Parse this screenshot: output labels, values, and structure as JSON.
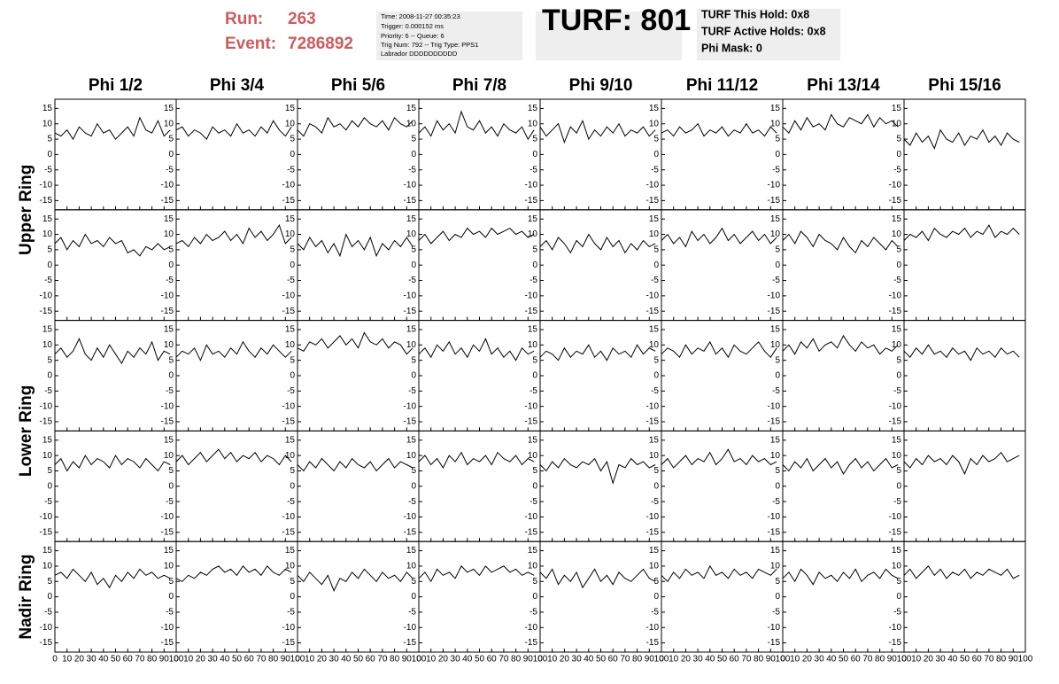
{
  "header": {
    "run_label": "Run:",
    "run": "263",
    "event_label": "Event:",
    "event": "7286892",
    "info": [
      "Time: 2008-11-27 00:35:23",
      "Trigger: 0.000152 ms",
      "Priority: 6 -- Queue: 6",
      "Trig Num: 792 -- Trig Type: PPS1",
      "Labrador DDDDDDDDDD"
    ],
    "turf": "TURF: 801",
    "turf_info": [
      "TURF This Hold: 0x8",
      "TURF Active Holds: 0x8",
      "Phi Mask: 0"
    ]
  },
  "chart_data": {
    "type": "line",
    "color": "#000000",
    "columns": [
      "Phi 1/2",
      "Phi 3/4",
      "Phi 5/6",
      "Phi 7/8",
      "Phi 9/10",
      "Phi 11/12",
      "Phi 13/14",
      "Phi 15/16"
    ],
    "rows": [
      "Upper Ring",
      "Lower Ring",
      "Nadir Ring"
    ],
    "xlim": [
      0,
      100
    ],
    "xticks": [
      0,
      10,
      20,
      30,
      40,
      50,
      60,
      70,
      80,
      90,
      100
    ],
    "ylim": [
      -18,
      18
    ],
    "yticks": [
      -15,
      -10,
      -5,
      0,
      5,
      10,
      15
    ],
    "x": [
      0,
      5,
      10,
      15,
      20,
      25,
      30,
      35,
      40,
      45,
      50,
      55,
      60,
      65,
      70,
      75,
      80,
      85,
      90,
      95
    ],
    "panels": [
      [
        [
          7,
          6,
          8,
          5,
          9,
          7,
          6,
          10,
          7,
          8,
          5,
          7,
          9,
          6,
          12,
          8,
          7,
          11,
          6,
          8
        ],
        [
          8,
          9,
          6,
          8,
          7,
          5,
          9,
          7,
          8,
          6,
          10,
          7,
          8,
          6,
          9,
          7,
          11,
          8,
          6,
          9
        ],
        [
          8,
          6,
          10,
          9,
          7,
          12,
          9,
          10,
          8,
          11,
          9,
          12,
          10,
          9,
          11,
          8,
          12,
          10,
          9,
          11
        ],
        [
          7,
          9,
          6,
          11,
          8,
          10,
          7,
          14,
          9,
          8,
          11,
          7,
          9,
          6,
          10,
          8,
          7,
          9,
          5,
          8
        ],
        [
          9,
          6,
          8,
          10,
          4,
          9,
          7,
          11,
          5,
          8,
          6,
          9,
          7,
          10,
          6,
          8,
          7,
          9,
          6,
          8
        ],
        [
          7,
          8,
          6,
          9,
          7,
          8,
          10,
          6,
          8,
          7,
          9,
          6,
          8,
          7,
          10,
          7,
          8,
          6,
          9,
          7
        ],
        [
          9,
          7,
          11,
          8,
          12,
          9,
          10,
          8,
          13,
          10,
          9,
          12,
          11,
          10,
          13,
          9,
          12,
          10,
          11,
          9
        ],
        [
          5,
          3,
          7,
          4,
          6,
          2,
          8,
          5,
          4,
          7,
          3,
          6,
          5,
          8,
          4,
          6,
          3,
          7,
          5,
          4
        ]
      ],
      [
        [
          7,
          9,
          5,
          8,
          6,
          10,
          7,
          8,
          6,
          9,
          7,
          8,
          4,
          5,
          3,
          6,
          5,
          7,
          5,
          6
        ],
        [
          7,
          8,
          6,
          9,
          7,
          10,
          8,
          9,
          11,
          8,
          10,
          7,
          12,
          9,
          11,
          8,
          10,
          13,
          7,
          9
        ],
        [
          7,
          5,
          9,
          6,
          8,
          4,
          7,
          3,
          10,
          6,
          8,
          5,
          9,
          3,
          7,
          5,
          8,
          6,
          9,
          6
        ],
        [
          8,
          10,
          7,
          9,
          11,
          8,
          10,
          9,
          12,
          10,
          11,
          9,
          12,
          10,
          11,
          12,
          10,
          11,
          9,
          10
        ],
        [
          6,
          8,
          5,
          9,
          7,
          4,
          8,
          6,
          10,
          7,
          5,
          9,
          6,
          8,
          4,
          7,
          5,
          8,
          6,
          7
        ],
        [
          8,
          10,
          7,
          9,
          6,
          11,
          8,
          10,
          7,
          9,
          12,
          8,
          10,
          7,
          9,
          11,
          8,
          10,
          7,
          9
        ],
        [
          8,
          10,
          7,
          11,
          9,
          6,
          10,
          8,
          7,
          5,
          9,
          6,
          4,
          8,
          6,
          9,
          7,
          5,
          8,
          6
        ],
        [
          8,
          10,
          9,
          11,
          8,
          12,
          10,
          9,
          11,
          10,
          12,
          9,
          11,
          10,
          13,
          9,
          11,
          10,
          12,
          10
        ]
      ],
      [
        [
          7,
          9,
          6,
          8,
          12,
          7,
          5,
          9,
          6,
          10,
          7,
          4,
          8,
          6,
          9,
          7,
          11,
          5,
          8,
          7
        ],
        [
          6,
          8,
          7,
          9,
          5,
          10,
          7,
          8,
          6,
          9,
          7,
          11,
          8,
          6,
          9,
          7,
          10,
          8,
          6,
          8
        ],
        [
          9,
          8,
          11,
          10,
          12,
          9,
          11,
          13,
          10,
          12,
          9,
          14,
          11,
          10,
          12,
          9,
          11,
          10,
          7,
          9
        ],
        [
          7,
          9,
          6,
          10,
          8,
          11,
          7,
          9,
          6,
          10,
          8,
          12,
          7,
          9,
          6,
          8,
          5,
          9,
          7,
          8
        ],
        [
          6,
          8,
          7,
          5,
          9,
          6,
          8,
          7,
          10,
          6,
          8,
          5,
          9,
          7,
          8,
          6,
          10,
          7,
          9,
          8
        ],
        [
          7,
          9,
          8,
          6,
          10,
          7,
          9,
          8,
          11,
          7,
          9,
          6,
          10,
          8,
          7,
          9,
          11,
          8,
          6,
          9
        ],
        [
          8,
          10,
          7,
          11,
          9,
          12,
          8,
          10,
          11,
          9,
          13,
          10,
          8,
          11,
          9,
          10,
          7,
          9,
          8,
          10
        ],
        [
          8,
          6,
          9,
          7,
          10,
          7,
          8,
          6,
          9,
          7,
          8,
          5,
          9,
          7,
          8,
          6,
          9,
          7,
          8,
          6
        ]
      ],
      [
        [
          7,
          9,
          5,
          8,
          6,
          10,
          7,
          9,
          8,
          6,
          10,
          7,
          9,
          8,
          6,
          9,
          7,
          5,
          8,
          7
        ],
        [
          8,
          10,
          7,
          9,
          11,
          8,
          10,
          12,
          9,
          11,
          8,
          10,
          9,
          11,
          8,
          10,
          9,
          7,
          10,
          8
        ],
        [
          7,
          5,
          8,
          6,
          9,
          7,
          5,
          8,
          6,
          9,
          7,
          6,
          8,
          5,
          7,
          9,
          6,
          8,
          7,
          6
        ],
        [
          8,
          10,
          7,
          9,
          6,
          10,
          8,
          11,
          7,
          9,
          8,
          10,
          7,
          11,
          9,
          8,
          10,
          7,
          9,
          8
        ],
        [
          7,
          5,
          8,
          6,
          9,
          7,
          6,
          8,
          7,
          9,
          5,
          8,
          1,
          7,
          6,
          9,
          7,
          8,
          6,
          7
        ],
        [
          7,
          9,
          6,
          8,
          10,
          7,
          9,
          8,
          11,
          7,
          9,
          12,
          8,
          9,
          7,
          10,
          8,
          9,
          7,
          8
        ],
        [
          7,
          5,
          8,
          6,
          9,
          5,
          7,
          9,
          6,
          8,
          4,
          7,
          9,
          6,
          8,
          5,
          7,
          9,
          6,
          7
        ],
        [
          8,
          6,
          9,
          7,
          10,
          8,
          9,
          7,
          10,
          8,
          4,
          9,
          7,
          10,
          8,
          9,
          11,
          8,
          9,
          10
        ]
      ],
      [
        [
          7,
          8,
          6,
          9,
          7,
          5,
          8,
          4,
          6,
          3,
          7,
          5,
          8,
          6,
          9,
          7,
          8,
          6,
          7,
          6
        ],
        [
          6,
          5,
          7,
          6,
          8,
          7,
          9,
          10,
          8,
          9,
          7,
          10,
          8,
          9,
          7,
          10,
          8,
          7,
          9,
          8
        ],
        [
          7,
          5,
          8,
          6,
          4,
          7,
          2,
          6,
          5,
          8,
          6,
          9,
          7,
          5,
          8,
          6,
          7,
          5,
          8,
          6
        ],
        [
          6,
          8,
          5,
          9,
          7,
          8,
          6,
          10,
          8,
          9,
          7,
          10,
          8,
          9,
          10,
          8,
          9,
          7,
          8,
          7
        ],
        [
          8,
          6,
          9,
          4,
          7,
          5,
          8,
          3,
          6,
          9,
          5,
          7,
          4,
          8,
          6,
          5,
          7,
          9,
          6,
          5
        ],
        [
          7,
          5,
          8,
          6,
          9,
          7,
          8,
          6,
          10,
          7,
          8,
          6,
          9,
          7,
          8,
          6,
          9,
          8,
          7,
          9
        ],
        [
          6,
          8,
          5,
          9,
          7,
          4,
          8,
          6,
          7,
          5,
          8,
          6,
          9,
          5,
          7,
          8,
          6,
          9,
          7,
          6
        ],
        [
          7,
          9,
          6,
          8,
          10,
          7,
          9,
          6,
          8,
          7,
          9,
          6,
          8,
          7,
          9,
          8,
          7,
          9,
          6,
          7
        ]
      ]
    ]
  }
}
